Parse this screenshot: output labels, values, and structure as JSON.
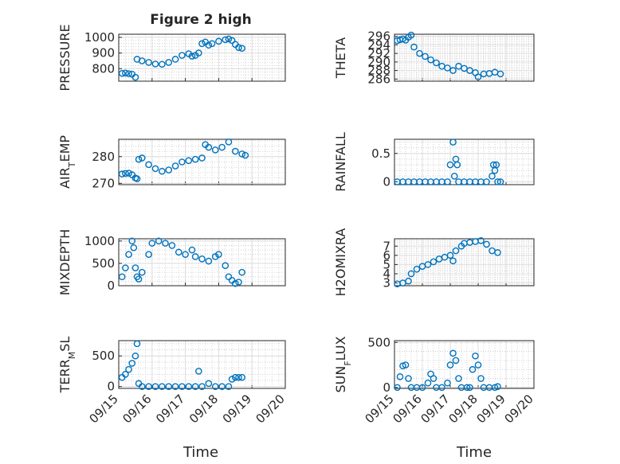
{
  "figure": {
    "title": "Figure 2 high",
    "xlabel": "Time"
  },
  "xticks": [
    "09/15",
    "09/16",
    "09/17",
    "09/18",
    "09/19",
    "09/20"
  ],
  "colors": {
    "marker": "#0072bd",
    "axis": "#262626",
    "grid": "#dcdcdc",
    "background": "#ffffff"
  },
  "chart_data": [
    {
      "type": "scatter",
      "ylabel": "PRESSURE",
      "ylabel_sub": "",
      "ylim": [
        720,
        1020
      ],
      "yticks": [
        800,
        900,
        1000
      ],
      "ytick_labels": [
        "800",
        "900",
        "1000"
      ],
      "xlim": [
        0,
        5
      ],
      "series": [
        {
          "name": "PRESSURE",
          "points": [
            [
              0.1,
              770
            ],
            [
              0.2,
              772
            ],
            [
              0.3,
              768
            ],
            [
              0.4,
              765
            ],
            [
              0.5,
              745
            ],
            [
              0.55,
              860
            ],
            [
              0.7,
              850
            ],
            [
              0.9,
              840
            ],
            [
              1.1,
              830
            ],
            [
              1.3,
              828
            ],
            [
              1.5,
              840
            ],
            [
              1.7,
              860
            ],
            [
              1.9,
              885
            ],
            [
              2.1,
              895
            ],
            [
              2.2,
              880
            ],
            [
              2.3,
              885
            ],
            [
              2.4,
              900
            ],
            [
              2.5,
              960
            ],
            [
              2.6,
              970
            ],
            [
              2.7,
              950
            ],
            [
              2.8,
              960
            ],
            [
              3.0,
              975
            ],
            [
              3.2,
              985
            ],
            [
              3.3,
              990
            ],
            [
              3.4,
              980
            ],
            [
              3.5,
              955
            ],
            [
              3.6,
              935
            ],
            [
              3.7,
              930
            ]
          ]
        }
      ]
    },
    {
      "type": "scatter",
      "ylabel": "THETA",
      "ylabel_sub": "",
      "ylim": [
        285.5,
        296.5
      ],
      "yticks": [
        286,
        288,
        290,
        292,
        294,
        296
      ],
      "ytick_labels": [
        "286",
        "288",
        "290",
        "292",
        "294",
        "296"
      ],
      "xlim": [
        0,
        5
      ],
      "series": [
        {
          "name": "THETA",
          "points": [
            [
              0.1,
              295
            ],
            [
              0.2,
              295.2
            ],
            [
              0.3,
              295.4
            ],
            [
              0.4,
              295.1
            ],
            [
              0.5,
              295.8
            ],
            [
              0.6,
              296.3
            ],
            [
              0.7,
              293.5
            ],
            [
              0.9,
              292
            ],
            [
              1.1,
              291.3
            ],
            [
              1.3,
              290.5
            ],
            [
              1.5,
              289.8
            ],
            [
              1.7,
              289
            ],
            [
              1.9,
              288.6
            ],
            [
              2.1,
              288
            ],
            [
              2.3,
              289
            ],
            [
              2.5,
              288.5
            ],
            [
              2.7,
              288
            ],
            [
              2.9,
              287.5
            ],
            [
              3.0,
              286.5
            ],
            [
              3.2,
              287.2
            ],
            [
              3.4,
              287.3
            ],
            [
              3.6,
              287.6
            ],
            [
              3.8,
              287.2
            ]
          ]
        }
      ]
    },
    {
      "type": "scatter",
      "ylabel": "AIR",
      "ylabel_sub": "T",
      "ylabel_suffix": "EMP",
      "ylim": [
        269.5,
        286.5
      ],
      "yticks": [
        270,
        280
      ],
      "ytick_labels": [
        "270",
        "280"
      ],
      "xlim": [
        0,
        5
      ],
      "series": [
        {
          "name": "AIR_TEMP",
          "points": [
            [
              0.1,
              273.5
            ],
            [
              0.2,
              273.7
            ],
            [
              0.3,
              273.8
            ],
            [
              0.4,
              273.2
            ],
            [
              0.5,
              272
            ],
            [
              0.55,
              271.7
            ],
            [
              0.6,
              279
            ],
            [
              0.7,
              279.5
            ],
            [
              0.9,
              277
            ],
            [
              1.1,
              275.5
            ],
            [
              1.3,
              274.5
            ],
            [
              1.5,
              275
            ],
            [
              1.7,
              276.5
            ],
            [
              1.9,
              278
            ],
            [
              2.1,
              278.5
            ],
            [
              2.3,
              279
            ],
            [
              2.5,
              279.5
            ],
            [
              2.6,
              284.5
            ],
            [
              2.7,
              283.5
            ],
            [
              2.9,
              282.5
            ],
            [
              3.1,
              283.5
            ],
            [
              3.3,
              285.5
            ],
            [
              3.5,
              282
            ],
            [
              3.7,
              281
            ],
            [
              3.8,
              280.5
            ]
          ]
        }
      ]
    },
    {
      "type": "scatter",
      "ylabel": "RAINFALL",
      "ylabel_sub": "",
      "ylim": [
        -0.05,
        0.75
      ],
      "yticks": [
        0,
        0.5
      ],
      "ytick_labels": [
        "0",
        "0.5"
      ],
      "xlim": [
        0,
        5
      ],
      "series": [
        {
          "name": "RAINFALL",
          "points": [
            [
              0.1,
              0
            ],
            [
              0.3,
              0
            ],
            [
              0.5,
              0
            ],
            [
              0.7,
              0
            ],
            [
              0.9,
              0
            ],
            [
              1.1,
              0
            ],
            [
              1.3,
              0
            ],
            [
              1.5,
              0
            ],
            [
              1.7,
              0
            ],
            [
              1.9,
              0
            ],
            [
              2.0,
              0.3
            ],
            [
              2.1,
              0.7
            ],
            [
              2.15,
              0.1
            ],
            [
              2.2,
              0.4
            ],
            [
              2.25,
              0.3
            ],
            [
              2.3,
              0
            ],
            [
              2.5,
              0
            ],
            [
              2.7,
              0
            ],
            [
              2.9,
              0
            ],
            [
              3.1,
              0
            ],
            [
              3.3,
              0
            ],
            [
              3.5,
              0.1
            ],
            [
              3.55,
              0.3
            ],
            [
              3.6,
              0.2
            ],
            [
              3.65,
              0.3
            ],
            [
              3.7,
              0
            ],
            [
              3.8,
              0
            ]
          ]
        }
      ]
    },
    {
      "type": "scatter",
      "ylabel": "MIXDEPTH",
      "ylabel_sub": "",
      "ylim": [
        0,
        1050
      ],
      "yticks": [
        0,
        500,
        1000
      ],
      "ytick_labels": [
        "0",
        "500",
        "1000"
      ],
      "xlim": [
        0,
        5
      ],
      "series": [
        {
          "name": "MIXDEPTH",
          "points": [
            [
              0.1,
              200
            ],
            [
              0.2,
              400
            ],
            [
              0.3,
              700
            ],
            [
              0.4,
              1000
            ],
            [
              0.45,
              850
            ],
            [
              0.5,
              400
            ],
            [
              0.55,
              200
            ],
            [
              0.6,
              150
            ],
            [
              0.7,
              300
            ],
            [
              0.9,
              700
            ],
            [
              1.0,
              950
            ],
            [
              1.2,
              1000
            ],
            [
              1.4,
              950
            ],
            [
              1.6,
              900
            ],
            [
              1.8,
              750
            ],
            [
              2.0,
              700
            ],
            [
              2.2,
              800
            ],
            [
              2.3,
              650
            ],
            [
              2.5,
              600
            ],
            [
              2.7,
              550
            ],
            [
              2.9,
              650
            ],
            [
              3.0,
              700
            ],
            [
              3.2,
              450
            ],
            [
              3.3,
              200
            ],
            [
              3.4,
              120
            ],
            [
              3.5,
              50
            ],
            [
              3.6,
              80
            ],
            [
              3.7,
              300
            ]
          ]
        }
      ]
    },
    {
      "type": "scatter",
      "ylabel": "H2OMIXRA",
      "ylabel_sub": "",
      "ylim": [
        2.7,
        7.8
      ],
      "yticks": [
        3,
        4,
        5,
        6,
        7
      ],
      "ytick_labels": [
        "3",
        "4",
        "5",
        "6",
        "7"
      ],
      "xlim": [
        0,
        5
      ],
      "series": [
        {
          "name": "H2OMIXRA",
          "points": [
            [
              0.1,
              2.9
            ],
            [
              0.3,
              3.0
            ],
            [
              0.5,
              3.2
            ],
            [
              0.6,
              4.0
            ],
            [
              0.8,
              4.5
            ],
            [
              1.0,
              4.8
            ],
            [
              1.2,
              5.0
            ],
            [
              1.4,
              5.3
            ],
            [
              1.6,
              5.6
            ],
            [
              1.8,
              5.8
            ],
            [
              2.0,
              6.0
            ],
            [
              2.1,
              5.4
            ],
            [
              2.2,
              6.5
            ],
            [
              2.4,
              7.0
            ],
            [
              2.5,
              7.3
            ],
            [
              2.7,
              7.4
            ],
            [
              2.9,
              7.5
            ],
            [
              3.1,
              7.6
            ],
            [
              3.3,
              7.2
            ],
            [
              3.5,
              6.5
            ],
            [
              3.7,
              6.3
            ]
          ]
        }
      ]
    },
    {
      "type": "scatter",
      "ylabel": "TERR",
      "ylabel_sub": "M",
      "ylabel_suffix": "SL",
      "ylim": [
        -30,
        750
      ],
      "yticks": [
        0,
        500
      ],
      "ytick_labels": [
        "0",
        "500"
      ],
      "xlim": [
        0,
        5
      ],
      "series": [
        {
          "name": "TERR_MSL",
          "points": [
            [
              0.1,
              150
            ],
            [
              0.2,
              200
            ],
            [
              0.3,
              280
            ],
            [
              0.4,
              380
            ],
            [
              0.5,
              500
            ],
            [
              0.55,
              700
            ],
            [
              0.6,
              50
            ],
            [
              0.7,
              0
            ],
            [
              0.9,
              0
            ],
            [
              1.1,
              0
            ],
            [
              1.3,
              0
            ],
            [
              1.5,
              0
            ],
            [
              1.7,
              0
            ],
            [
              1.9,
              0
            ],
            [
              2.1,
              0
            ],
            [
              2.3,
              0
            ],
            [
              2.4,
              250
            ],
            [
              2.5,
              0
            ],
            [
              2.7,
              50
            ],
            [
              2.9,
              0
            ],
            [
              3.1,
              0
            ],
            [
              3.3,
              0
            ],
            [
              3.4,
              120
            ],
            [
              3.5,
              150
            ],
            [
              3.6,
              150
            ],
            [
              3.7,
              150
            ]
          ]
        }
      ]
    },
    {
      "type": "scatter",
      "ylabel": "SUN",
      "ylabel_sub": "F",
      "ylabel_suffix": "LUX",
      "ylim": [
        -10,
        520
      ],
      "yticks": [
        0,
        500
      ],
      "ytick_labels": [
        "0",
        "500"
      ],
      "xlim": [
        0,
        5
      ],
      "series": [
        {
          "name": "SUN_FLUX",
          "points": [
            [
              0.1,
              0
            ],
            [
              0.2,
              120
            ],
            [
              0.3,
              240
            ],
            [
              0.4,
              250
            ],
            [
              0.5,
              100
            ],
            [
              0.6,
              0
            ],
            [
              0.8,
              0
            ],
            [
              1.0,
              0
            ],
            [
              1.2,
              50
            ],
            [
              1.3,
              150
            ],
            [
              1.4,
              100
            ],
            [
              1.5,
              0
            ],
            [
              1.7,
              0
            ],
            [
              1.9,
              50
            ],
            [
              2.0,
              250
            ],
            [
              2.1,
              380
            ],
            [
              2.2,
              300
            ],
            [
              2.3,
              100
            ],
            [
              2.4,
              0
            ],
            [
              2.6,
              0
            ],
            [
              2.7,
              0
            ],
            [
              2.8,
              200
            ],
            [
              2.9,
              350
            ],
            [
              3.0,
              250
            ],
            [
              3.1,
              100
            ],
            [
              3.2,
              0
            ],
            [
              3.4,
              0
            ],
            [
              3.6,
              0
            ],
            [
              3.7,
              10
            ]
          ]
        }
      ]
    }
  ]
}
